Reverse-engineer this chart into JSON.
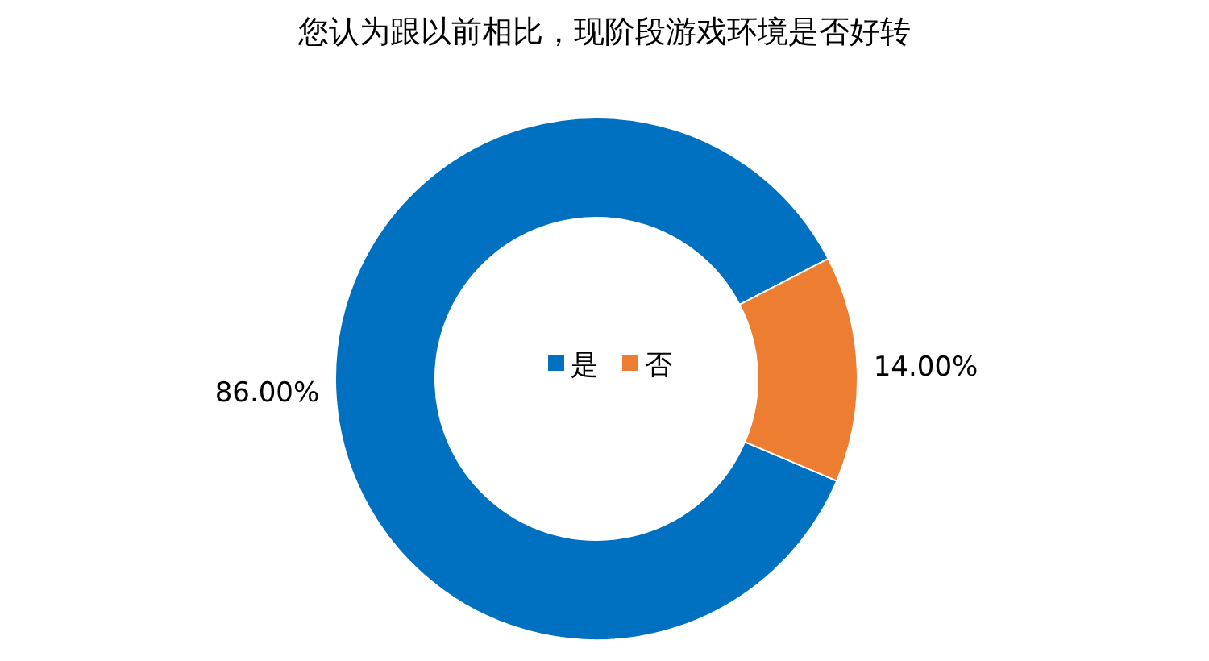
{
  "chart_data": {
    "type": "donut",
    "title": "您认为跟以前相比，现阶段游戏环境是否好转",
    "categories": [
      "是",
      "否"
    ],
    "values": [
      86,
      14
    ],
    "colors": [
      "#0070c0",
      "#ed7d31"
    ],
    "value_labels": [
      "86.00%",
      "14.00%"
    ],
    "legend": "center"
  }
}
